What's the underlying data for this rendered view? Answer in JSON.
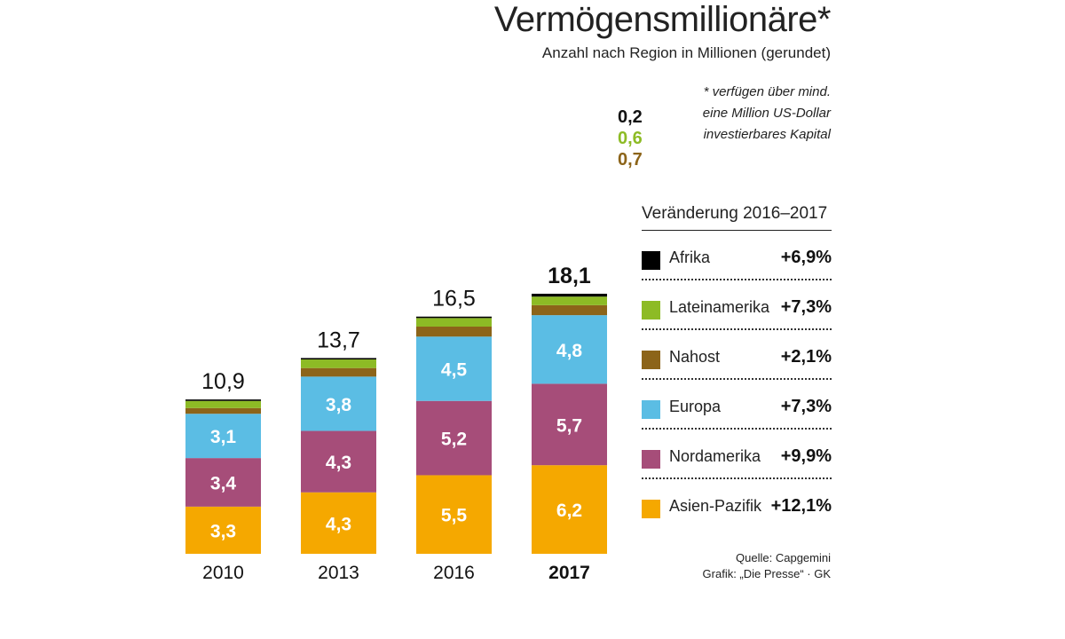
{
  "header": {
    "title": "Vermögensmillionäre*",
    "subtitle": "Anzahl nach Region in Millionen (gerundet)",
    "footnote_lines": [
      "* verfügen über mind.",
      "eine Million US-Dollar",
      "investierbares Kapital"
    ]
  },
  "legend": {
    "title": "Veränderung 2016–2017",
    "items": [
      {
        "name": "Afrika",
        "change": "+6,9%",
        "color": "#000000"
      },
      {
        "name": "Lateinamerika",
        "change": "+7,3%",
        "color": "#8dbb25"
      },
      {
        "name": "Nahost",
        "change": "+2,1%",
        "color": "#8c6419"
      },
      {
        "name": "Europa",
        "change": "+7,3%",
        "color": "#5bbde4"
      },
      {
        "name": "Nordamerika",
        "change": "+9,9%",
        "color": "#a64d79"
      },
      {
        "name": "Asien-Pazifik",
        "change": "+12,1%",
        "color": "#f5a800"
      }
    ]
  },
  "source": {
    "line1": "Quelle: Capgemini",
    "line2": "Grafik: „Die Presse“ · GK"
  },
  "chart_data": {
    "type": "bar",
    "stacked": true,
    "categories": [
      "2010",
      "2013",
      "2016",
      "2017"
    ],
    "highlight_category": "2017",
    "totals": [
      "10,9",
      "13,7",
      "16,5",
      "18,1"
    ],
    "series": [
      {
        "name": "Asien-Pazifik",
        "color": "#f5a800",
        "values": [
          3.3,
          4.3,
          5.5,
          6.2
        ],
        "labels": [
          "3,3",
          "4,3",
          "5,5",
          "6,2"
        ]
      },
      {
        "name": "Nordamerika",
        "color": "#a64d79",
        "values": [
          3.4,
          4.3,
          5.2,
          5.7
        ],
        "labels": [
          "3,4",
          "4,3",
          "5,2",
          "5,7"
        ]
      },
      {
        "name": "Europa",
        "color": "#5bbde4",
        "values": [
          3.1,
          3.8,
          4.5,
          4.8
        ],
        "labels": [
          "3,1",
          "3,8",
          "4,5",
          "4,8"
        ]
      },
      {
        "name": "Nahost",
        "color": "#8c6419",
        "values": [
          0.4,
          0.6,
          0.7,
          0.7
        ],
        "labels": [
          "",
          "",
          "",
          "0,7"
        ]
      },
      {
        "name": "Lateinamerika",
        "color": "#8dbb25",
        "values": [
          0.5,
          0.6,
          0.6,
          0.6
        ],
        "labels": [
          "",
          "",
          "",
          "0,6"
        ]
      },
      {
        "name": "Afrika",
        "color": "#000000",
        "values": [
          0.1,
          0.1,
          0.1,
          0.2
        ],
        "labels": [
          "",
          "",
          "",
          "0,2"
        ]
      }
    ]
  }
}
